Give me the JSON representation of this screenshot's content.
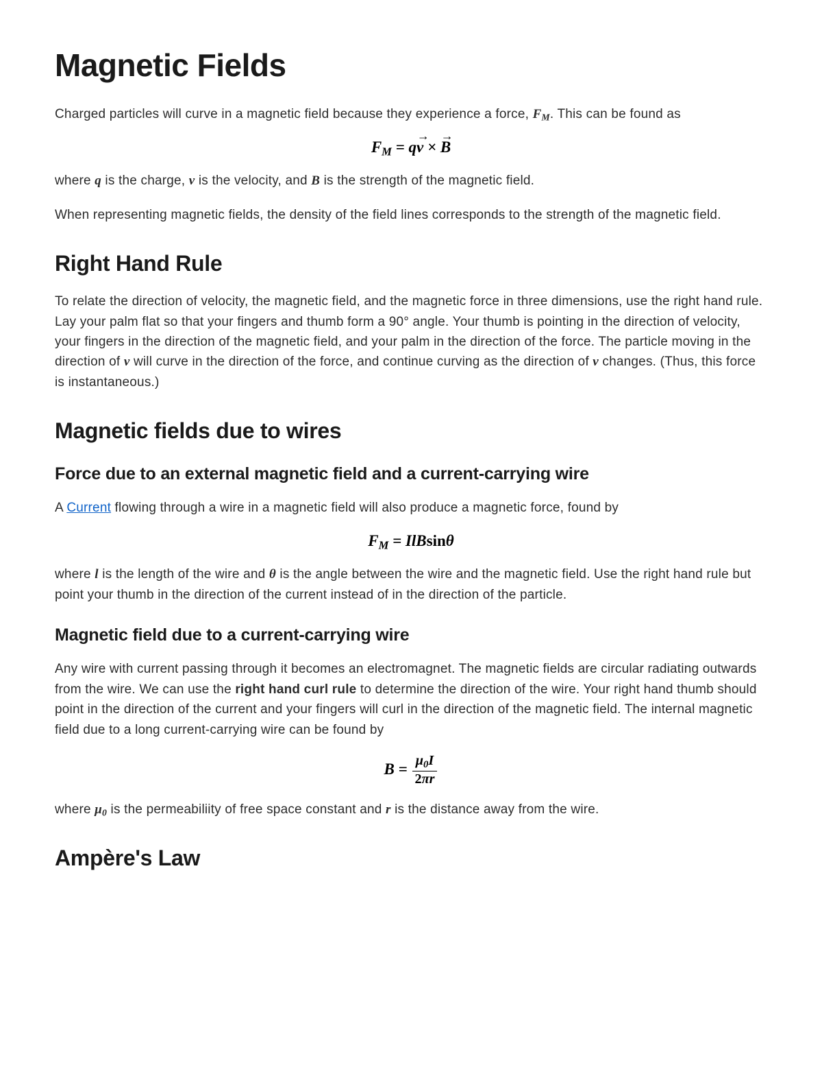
{
  "title": "Magnetic Fields",
  "p1_a": "Charged particles will curve in a magnetic field because they experience a force, ",
  "p1_fm_F": "F",
  "p1_fm_M": "M",
  "p1_b": ". This can be found as",
  "eq1": {
    "F": "F",
    "M": "M",
    "eq": " = ",
    "q": "q",
    "v": "v",
    "times": " × ",
    "B": "B"
  },
  "p2_a": "where ",
  "p2_q": "q",
  "p2_b": " is the charge, ",
  "p2_v": "v",
  "p2_c": " is the velocity, and ",
  "p2_B": "B",
  "p2_d": " is the strength of the magnetic field.",
  "p3": "When representing magnetic fields, the density of the field lines corresponds to the strength of the magnetic field.",
  "h2_rhr": "Right Hand Rule",
  "p4_a": "To relate the direction of velocity, the magnetic field, and the magnetic force in three dimensions, use the right hand rule. Lay your palm flat so that your fingers and thumb form a 90° angle. Your thumb is pointing in the direction of velocity, your fingers in the direction of the magnetic field, and your palm in the direction of the force. The particle moving in the direction of ",
  "p4_v1": "v",
  "p4_b": " will curve in the direction of the force, and continue curving as the direction of ",
  "p4_v2": "v",
  "p4_c": " changes. (Thus, this force is instantaneous.)",
  "h2_wires": "Magnetic fields due to wires",
  "h3_ext": "Force due to an external magnetic field and a current-carrying wire",
  "p5_a": "A ",
  "p5_link": "Current",
  "p5_b": " flowing through a wire in a magnetic field will also produce a magnetic force, found by",
  "eq2": {
    "F": "F",
    "M": "M",
    "eq": " = ",
    "I": "I",
    "l": "l",
    "B": "B",
    "sin": "sin",
    "theta": "θ"
  },
  "p6_a": "where ",
  "p6_l": "l",
  "p6_b": " is the length of the wire and ",
  "p6_theta": "θ",
  "p6_c": " is the angle between the wire and the magnetic field. Use the right hand rule but point your thumb in the direction of the current instead of in the direction of the particle.",
  "h3_due": "Magnetic field due to a current-carrying wire",
  "p7_a": "Any wire with current passing through it becomes an electromagnet. The magnetic fields are circular radiating outwards from the wire. We can use the ",
  "p7_bold": "right hand curl rule",
  "p7_b": " to determine the direction of the wire. Your right hand thumb should point in the direction of the current and your fingers will curl in the direction of the magnetic field. The internal magnetic field due to a long current-carrying wire can be found by",
  "eq3": {
    "B": "B",
    "eq": " = ",
    "mu": "μ",
    "zero": "0",
    "I": "I",
    "two": "2",
    "pi": "π",
    "r": "r"
  },
  "p8_a": "where ",
  "p8_mu": "μ",
  "p8_zero": "0",
  "p8_b": " is the permeabiliity of free space constant and ",
  "p8_r": "r",
  "p8_c": " is the distance away from the wire.",
  "h2_ampere": "Ampère's Law"
}
